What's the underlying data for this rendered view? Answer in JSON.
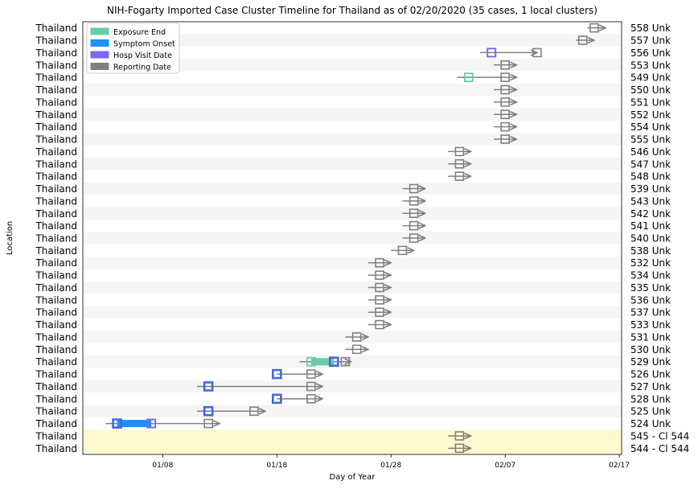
{
  "chart_data": {
    "type": "timeline",
    "title": "NIH-Fogarty Imported Case Cluster Timeline for Thailand as of 02/20/2020   (35 cases, 1 local clusters)",
    "xlabel": "Day of Year",
    "ylabel": "Location",
    "x_ticks": [
      {
        "day": 8,
        "label": "01/08"
      },
      {
        "day": 18,
        "label": "01/18"
      },
      {
        "day": 28,
        "label": "01/28"
      },
      {
        "day": 38,
        "label": "02/07"
      },
      {
        "day": 48,
        "label": "02/17"
      }
    ],
    "xlim": [
      1,
      48.2
    ],
    "legend": {
      "placement": "top-left",
      "entries": [
        {
          "key": "exposure",
          "label": "Exposure End",
          "color": "#66cdaa"
        },
        {
          "key": "onset",
          "label": "Symptom Onset",
          "color": "#1e90ff"
        },
        {
          "key": "hosp",
          "label": "Hosp Visit Date",
          "color": "#7b68ee"
        },
        {
          "key": "report",
          "label": "Reporting Date",
          "color": "#808080"
        }
      ]
    },
    "colors": {
      "exposure": "#66cdaa",
      "onset": "#1e90ff",
      "onset_box": "#4169e1",
      "hosp": "#7b68ee",
      "report": "#808080",
      "band": "#f5f5f5",
      "cluster_band": "#fffacd"
    },
    "rows": [
      {
        "location": "Thailand",
        "label": "558 Unk",
        "line": [
          45.2,
          46.8
        ],
        "report": 45.8
      },
      {
        "location": "Thailand",
        "label": "557 Unk",
        "line": [
          44.2,
          45.8
        ],
        "report": 44.8
      },
      {
        "location": "Thailand",
        "label": "556 Unk",
        "line": [
          35.8,
          40.8
        ],
        "hosp": 36.8,
        "report": 40.8
      },
      {
        "location": "Thailand",
        "label": "553 Unk",
        "line": [
          37.0,
          39.0
        ],
        "report": 38.0
      },
      {
        "location": "Thailand",
        "label": "549 Unk",
        "line": [
          33.8,
          39.0
        ],
        "exposure": 34.8,
        "report": 38.0
      },
      {
        "location": "Thailand",
        "label": "550 Unk",
        "line": [
          37.0,
          39.0
        ],
        "report": 38.0
      },
      {
        "location": "Thailand",
        "label": "551 Unk",
        "line": [
          37.0,
          39.0
        ],
        "report": 38.0
      },
      {
        "location": "Thailand",
        "label": "552 Unk",
        "line": [
          37.0,
          39.0
        ],
        "report": 38.0
      },
      {
        "location": "Thailand",
        "label": "554 Unk",
        "line": [
          37.0,
          39.0
        ],
        "report": 38.0
      },
      {
        "location": "Thailand",
        "label": "555 Unk",
        "line": [
          37.0,
          39.0
        ],
        "report": 38.0
      },
      {
        "location": "Thailand",
        "label": "546 Unk",
        "line": [
          33.0,
          35.0
        ],
        "report": 34.0
      },
      {
        "location": "Thailand",
        "label": "547 Unk",
        "line": [
          33.0,
          35.0
        ],
        "report": 34.0
      },
      {
        "location": "Thailand",
        "label": "548 Unk",
        "line": [
          33.0,
          35.0
        ],
        "report": 34.0
      },
      {
        "location": "Thailand",
        "label": "539 Unk",
        "line": [
          29.0,
          31.0
        ],
        "report": 30.0
      },
      {
        "location": "Thailand",
        "label": "543 Unk",
        "line": [
          29.0,
          31.0
        ],
        "report": 30.0
      },
      {
        "location": "Thailand",
        "label": "542 Unk",
        "line": [
          29.0,
          31.0
        ],
        "report": 30.0
      },
      {
        "location": "Thailand",
        "label": "541 Unk",
        "line": [
          29.0,
          31.0
        ],
        "report": 30.0
      },
      {
        "location": "Thailand",
        "label": "540 Unk",
        "line": [
          29.0,
          31.0
        ],
        "report": 30.0
      },
      {
        "location": "Thailand",
        "label": "538 Unk",
        "line": [
          28.0,
          30.0
        ],
        "report": 29.0
      },
      {
        "location": "Thailand",
        "label": "532 Unk",
        "line": [
          26.0,
          28.0
        ],
        "report": 27.0
      },
      {
        "location": "Thailand",
        "label": "534 Unk",
        "line": [
          26.0,
          28.0
        ],
        "report": 27.0
      },
      {
        "location": "Thailand",
        "label": "535 Unk",
        "line": [
          26.0,
          28.0
        ],
        "report": 27.0
      },
      {
        "location": "Thailand",
        "label": "536 Unk",
        "line": [
          26.0,
          28.0
        ],
        "report": 27.0
      },
      {
        "location": "Thailand",
        "label": "537 Unk",
        "line": [
          26.0,
          28.0
        ],
        "report": 27.0
      },
      {
        "location": "Thailand",
        "label": "533 Unk",
        "line": [
          26.0,
          28.0
        ],
        "report": 27.0
      },
      {
        "location": "Thailand",
        "label": "531 Unk",
        "line": [
          24.0,
          26.0
        ],
        "report": 25.0
      },
      {
        "location": "Thailand",
        "label": "530 Unk",
        "line": [
          24.0,
          26.0
        ],
        "report": 25.0
      },
      {
        "location": "Thailand",
        "label": "529 Unk",
        "line": [
          20.0,
          24.5
        ],
        "exposure": 21.0,
        "onset": 23.0,
        "report": 24.0
      },
      {
        "location": "Thailand",
        "label": "526 Unk",
        "line": [
          18.0,
          22.0
        ],
        "onset": 18.0,
        "report": 21.0
      },
      {
        "location": "Thailand",
        "label": "527 Unk",
        "line": [
          11.0,
          22.0
        ],
        "onset": 12.0,
        "report": 21.0
      },
      {
        "location": "Thailand",
        "label": "528 Unk",
        "line": [
          18.0,
          22.0
        ],
        "onset": 18.0,
        "report": 21.0
      },
      {
        "location": "Thailand",
        "label": "525 Unk",
        "line": [
          11.0,
          17.0
        ],
        "onset": 12.0,
        "report": 16.0
      },
      {
        "location": "Thailand",
        "label": "524 Unk",
        "line": [
          3.0,
          13.0
        ],
        "onset": 4.0,
        "hosp": 7.0,
        "report": 12.0
      },
      {
        "location": "Thailand",
        "label": "545 - Cl 544",
        "line": [
          33.0,
          35.0
        ],
        "report": 34.0,
        "cluster": true
      },
      {
        "location": "Thailand",
        "label": "544 - Cl 544",
        "line": [
          33.0,
          35.0
        ],
        "report": 34.0,
        "cluster": true
      }
    ]
  }
}
